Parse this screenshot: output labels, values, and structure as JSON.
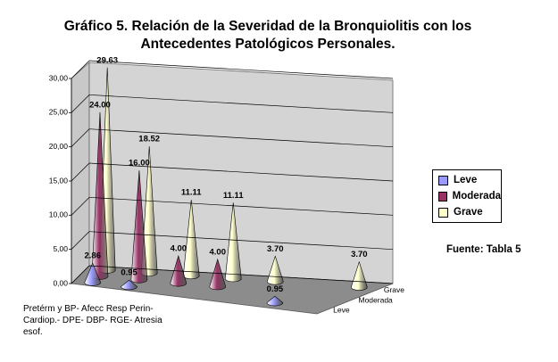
{
  "chart_data": {
    "type": "cone3d",
    "title_lines": [
      "Gráfico 5. Relación de la Severidad de la Bronquiolitis con los",
      "Antecedentes Patológicos Personales."
    ],
    "categories": [
      "Pretérm y BP-",
      "Afecc Resp Perin-",
      "Cardiop.-",
      "DPE-",
      "DBP-",
      "RGE-",
      "Atresia esof."
    ],
    "series": [
      {
        "name": "Leve",
        "color": "#9999ff",
        "values": [
          2.86,
          0.95,
          null,
          null,
          null,
          0.95,
          null
        ],
        "value_labels": [
          "2.86",
          "0.95",
          null,
          null,
          null,
          "0.95",
          null
        ]
      },
      {
        "name": "Moderada",
        "color": "#993366",
        "values": [
          24,
          16,
          4,
          4,
          null,
          null,
          null
        ],
        "value_labels": [
          "24.00",
          "16.00",
          "4.00",
          "4.00",
          null,
          null,
          null
        ]
      },
      {
        "name": "Grave",
        "color": "#ffffcc",
        "values": [
          29.63,
          18.52,
          11.11,
          11.11,
          3.7,
          null,
          3.7
        ],
        "value_labels": [
          "29.63",
          "18.52",
          "11.11",
          "11.11",
          "3.70",
          null,
          "3.70"
        ]
      }
    ],
    "ylim": [
      0,
      30
    ],
    "yticks": [
      {
        "value": 0,
        "label": "0,00"
      },
      {
        "value": 5,
        "label": "5,00"
      },
      {
        "value": 10,
        "label": "10,00"
      },
      {
        "value": 15,
        "label": "15,00"
      },
      {
        "value": 20,
        "label": "20,00"
      },
      {
        "value": 25,
        "label": "25,00"
      },
      {
        "value": 30,
        "label": "30,00"
      }
    ],
    "grid": true,
    "source": "Fuente: Tabla 5"
  }
}
